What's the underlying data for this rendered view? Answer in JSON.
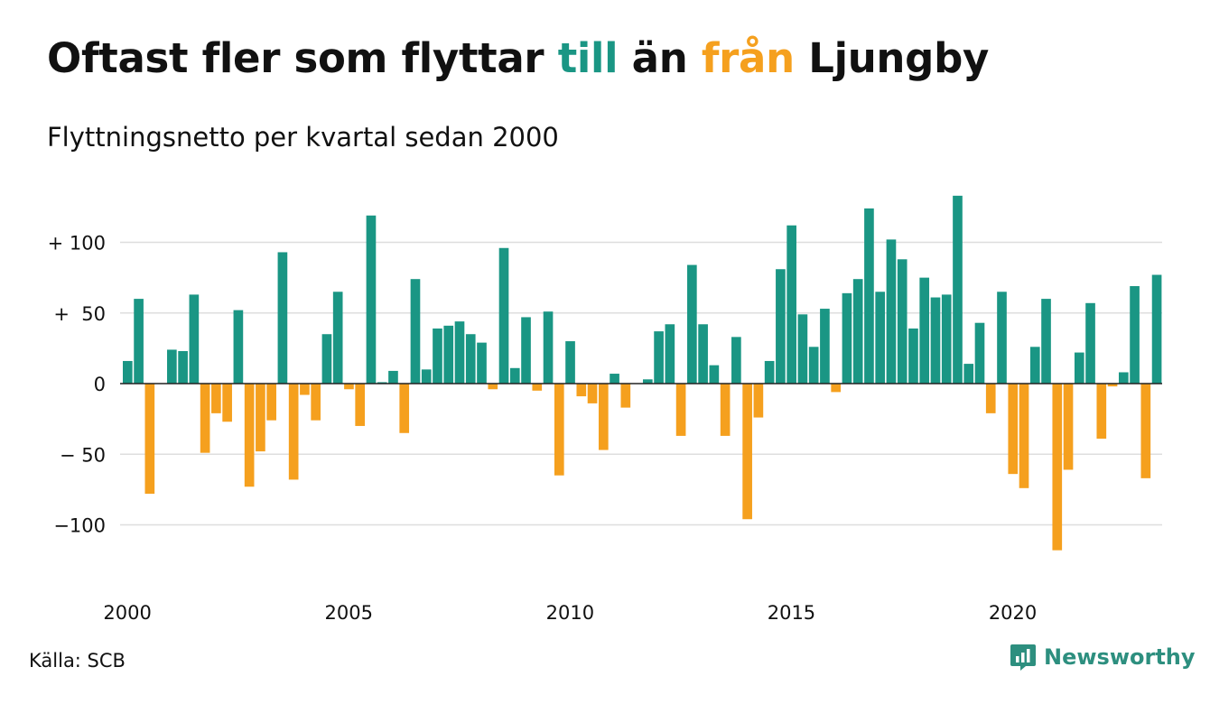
{
  "header": {
    "title_parts": [
      "Oftast fler som flyttar ",
      "till",
      " än ",
      "från",
      " Ljungby"
    ],
    "subtitle": "Flyttningsnetto per kvartal sedan 2000"
  },
  "footer": {
    "source": "Källa: SCB",
    "brand": "Newsworthy"
  },
  "colors": {
    "positive": "#1a9684",
    "negative": "#f5a01e",
    "till": "#1a9684",
    "fran": "#f5a01e",
    "brand": "#2d8f7f"
  },
  "icons": {
    "brand_icon": "chart-logo-icon"
  },
  "chart_data": {
    "type": "bar",
    "title": "Oftast fler som flyttar till än från Ljungby",
    "subtitle": "Flyttningsnetto per kvartal sedan 2000",
    "xlabel": "",
    "ylabel": "",
    "ylim": [
      -130,
      135
    ],
    "grid": true,
    "legend": "none",
    "yticks": [
      100,
      50,
      0,
      -50,
      -100
    ],
    "ytick_labels": [
      "+ 100",
      "+  50",
      "0",
      "− 50",
      "−100"
    ],
    "xticks": [
      "2000",
      "2005",
      "2010",
      "2015",
      "2020"
    ],
    "x_start_year": 2000,
    "values": [
      16,
      60,
      -78,
      0,
      24,
      23,
      63,
      -49,
      -21,
      -27,
      52,
      -73,
      -48,
      -26,
      93,
      -68,
      -8,
      -26,
      35,
      65,
      -4,
      -30,
      119,
      1,
      9,
      -35,
      74,
      10,
      39,
      41,
      44,
      35,
      29,
      -4,
      96,
      11,
      47,
      -5,
      51,
      -65,
      30,
      -9,
      -14,
      -47,
      7,
      -17,
      0,
      3,
      37,
      42,
      -37,
      84,
      42,
      13,
      -37,
      33,
      -96,
      -24,
      16,
      81,
      112,
      49,
      26,
      53,
      -6,
      64,
      74,
      124,
      65,
      102,
      88,
      39,
      75,
      61,
      63,
      133,
      14,
      43,
      -21,
      65,
      -64,
      -74,
      26,
      60,
      -118,
      -61,
      22,
      57,
      -39,
      -2,
      8,
      69,
      -67,
      77
    ]
  }
}
